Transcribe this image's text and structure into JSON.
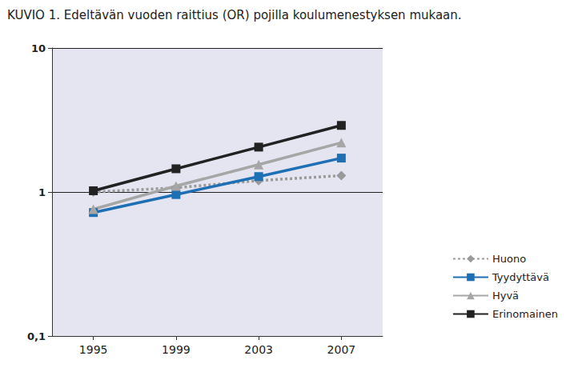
{
  "chart_data": {
    "type": "line",
    "title": "KUVIO 1. Edeltävän vuoden raittius (OR) pojilla koulumenestyksen mukaan.",
    "categories": [
      "1995",
      "1999",
      "2003",
      "2007"
    ],
    "series": [
      {
        "name": "Huono",
        "color": "#9a9a9a",
        "marker": "diamond",
        "line_style": "dotted",
        "values": [
          1.0,
          1.07,
          1.2,
          1.3
        ]
      },
      {
        "name": "Tyydyttävä",
        "color": "#1f6fb5",
        "marker": "square",
        "line_style": "solid",
        "values": [
          0.72,
          0.96,
          1.28,
          1.72
        ]
      },
      {
        "name": "Hyvä",
        "color": "#a6a6a6",
        "marker": "triangle",
        "line_style": "solid",
        "values": [
          0.76,
          1.1,
          1.55,
          2.2
        ]
      },
      {
        "name": "Erinomainen",
        "color": "#222222",
        "marker": "square",
        "line_style": "solid",
        "values": [
          1.02,
          1.45,
          2.05,
          2.9
        ]
      }
    ],
    "ylim": [
      0.1,
      10
    ],
    "yticks": [
      {
        "value": 0.1,
        "label": "0,1"
      },
      1,
      10
    ],
    "log": "y",
    "grid": true,
    "legend": "right"
  }
}
